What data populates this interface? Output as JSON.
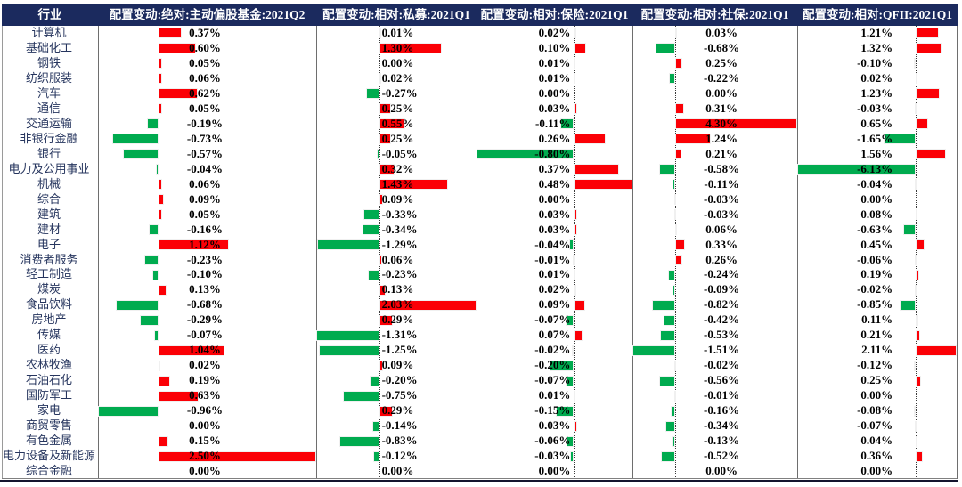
{
  "header": {
    "industry_col": "行业"
  },
  "chart_data": {
    "type": "bar",
    "orientation": "horizontal",
    "unit": "%",
    "value_format": "0.00%",
    "grid": false,
    "legend": "none",
    "categories": [
      "计算机",
      "基础化工",
      "钢铁",
      "纺织服装",
      "汽车",
      "通信",
      "交通运输",
      "非银行金融",
      "银行",
      "电力及公用事业",
      "机械",
      "综合",
      "建筑",
      "建材",
      "电子",
      "消费者服务",
      "轻工制造",
      "煤炭",
      "食品饮料",
      "房地产",
      "传媒",
      "医药",
      "农林牧渔",
      "石油石化",
      "国防军工",
      "家电",
      "商贸零售",
      "有色金属",
      "电力设备及新能源",
      "综合金融"
    ],
    "series": [
      {
        "name": "配置变动:绝对:主动偏股基金:2021Q2",
        "values": [
          0.37,
          0.6,
          0.05,
          0.06,
          0.62,
          0.05,
          -0.19,
          -0.73,
          -0.57,
          -0.04,
          0.06,
          0.09,
          0.05,
          -0.16,
          1.12,
          -0.23,
          -0.1,
          0.13,
          -0.68,
          -0.29,
          -0.07,
          1.04,
          0.02,
          0.19,
          0.63,
          -0.96,
          0.0,
          0.15,
          2.5,
          0.0
        ]
      },
      {
        "name": "配置变动:相对:私募:2021Q1",
        "values": [
          0.01,
          1.3,
          0.0,
          0.02,
          -0.27,
          0.25,
          0.55,
          0.25,
          -0.05,
          0.32,
          1.43,
          0.09,
          -0.33,
          -0.34,
          -1.29,
          0.06,
          -0.23,
          0.13,
          2.03,
          0.29,
          -1.31,
          -1.25,
          0.09,
          -0.2,
          -0.75,
          0.29,
          -0.14,
          -0.83,
          -0.12,
          0.0
        ]
      },
      {
        "name": "配置变动:相对:保险:2021Q1",
        "values": [
          0.02,
          0.1,
          0.01,
          0.01,
          0.0,
          0.03,
          -0.11,
          0.26,
          -0.8,
          0.37,
          0.48,
          0.0,
          0.03,
          0.03,
          -0.04,
          -0.01,
          0.01,
          0.02,
          0.09,
          -0.07,
          0.07,
          -0.02,
          -0.2,
          -0.07,
          0.01,
          -0.15,
          0.03,
          -0.06,
          -0.03,
          0.0
        ]
      },
      {
        "name": "配置变动:相对:社保:2021Q1",
        "values": [
          0.03,
          -0.68,
          0.25,
          -0.22,
          0.0,
          0.31,
          4.3,
          1.24,
          0.21,
          -0.58,
          -0.11,
          -0.03,
          -0.03,
          0.06,
          0.33,
          0.26,
          -0.24,
          -0.09,
          -0.82,
          -0.42,
          -0.53,
          -1.51,
          -0.02,
          -0.56,
          -0.01,
          -0.16,
          -0.34,
          -0.13,
          -0.52,
          0.0
        ]
      },
      {
        "name": "配置变动:相对:QFII:2021Q1",
        "values": [
          1.21,
          1.32,
          -0.1,
          0.02,
          1.23,
          -0.03,
          0.65,
          -1.65,
          1.56,
          -6.13,
          -0.04,
          0.0,
          0.08,
          -0.63,
          0.45,
          -0.06,
          0.19,
          -0.02,
          -0.85,
          0.11,
          0.21,
          2.11,
          -0.12,
          0.25,
          0.0,
          -0.08,
          -0.07,
          0.04,
          0.36,
          0.0
        ]
      }
    ],
    "colors": {
      "positive_bar": "#FB0006",
      "negative_bar": "#00AB4F",
      "header_bg": "#1B2A5E",
      "header_text": "#FFFFFF",
      "industry_text": "#26355E",
      "value_text": "#000000"
    }
  }
}
